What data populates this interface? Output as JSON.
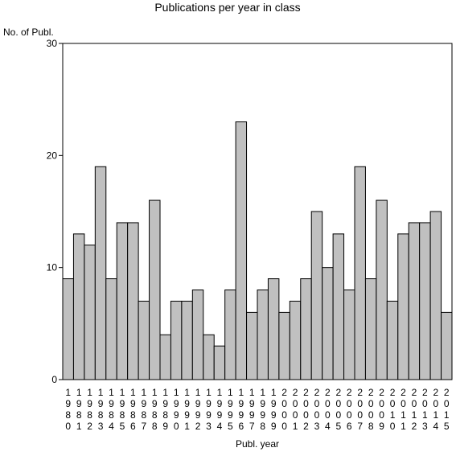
{
  "chart_data": {
    "type": "bar",
    "title": "Publications per year in class",
    "ylabel": "No. of Publ.",
    "xlabel": "Publ. year",
    "ylim": [
      0,
      30
    ],
    "yticks": [
      0,
      10,
      20,
      30
    ],
    "grid": false,
    "categories": [
      "1980",
      "1981",
      "1982",
      "1983",
      "1984",
      "1985",
      "1986",
      "1987",
      "1988",
      "1989",
      "1990",
      "1991",
      "1992",
      "1993",
      "1994",
      "1995",
      "1996",
      "1997",
      "1998",
      "1999",
      "2000",
      "2001",
      "2002",
      "2003",
      "2004",
      "2005",
      "2006",
      "2007",
      "2008",
      "2009",
      "2010",
      "2011",
      "2012",
      "2013",
      "2014",
      "2015"
    ],
    "values": [
      9,
      13,
      12,
      19,
      9,
      14,
      14,
      7,
      16,
      4,
      7,
      7,
      8,
      4,
      3,
      8,
      23,
      6,
      8,
      9,
      6,
      7,
      9,
      15,
      10,
      13,
      8,
      19,
      9,
      16,
      7,
      13,
      14,
      14,
      15,
      6
    ],
    "bar_color": "#c0c0c0",
    "bar_stroke": "#000000"
  }
}
